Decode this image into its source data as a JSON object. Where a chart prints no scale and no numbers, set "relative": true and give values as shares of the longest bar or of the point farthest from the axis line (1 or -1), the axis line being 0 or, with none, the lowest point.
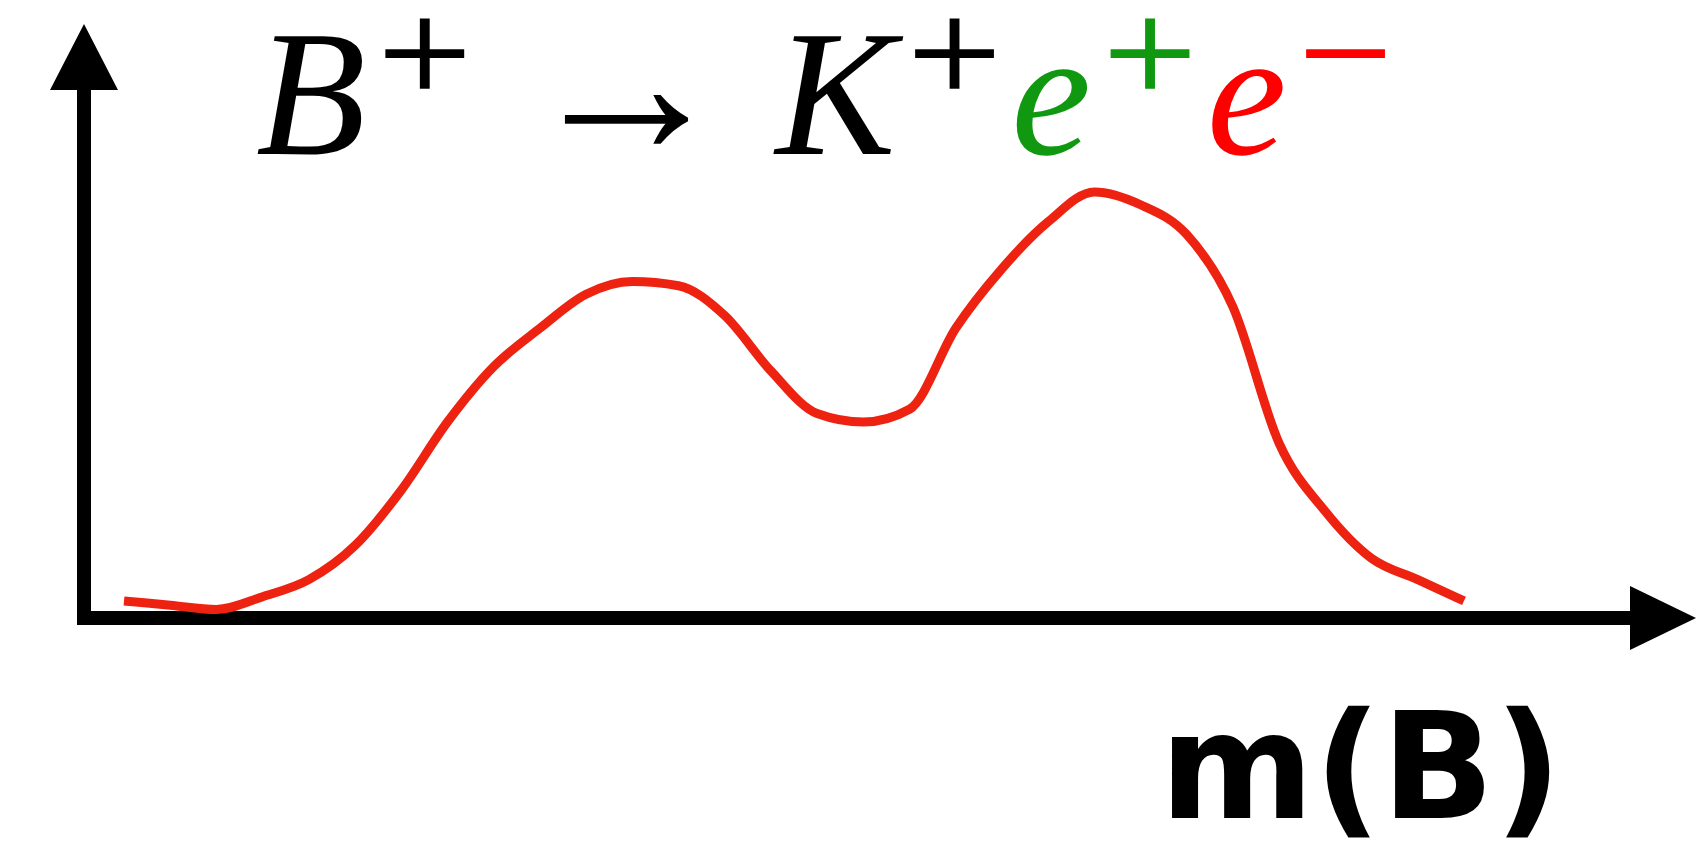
{
  "chart_data": {
    "type": "line",
    "title": "B⁺ → K⁺e⁺e⁻",
    "xlabel": "m(B)",
    "relative": true,
    "categories": [
      null,
      null,
      null,
      null,
      null,
      null,
      null,
      null,
      null,
      null,
      null,
      null,
      null,
      null,
      null,
      null,
      null,
      null,
      null,
      null,
      null,
      null,
      null,
      null,
      null,
      null,
      null,
      null,
      null,
      null
    ],
    "color": "#ee2211",
    "values": [
      0.04,
      0.03,
      0.02,
      0.05,
      0.09,
      0.17,
      0.3,
      0.46,
      0.59,
      0.68,
      0.76,
      0.79,
      0.78,
      0.71,
      0.58,
      0.48,
      0.46,
      0.49,
      0.68,
      0.82,
      0.93,
      1,
      0.97,
      0.9,
      0.73,
      0.41,
      0.25,
      0.14,
      0.09,
      0.04
    ]
  }
}
